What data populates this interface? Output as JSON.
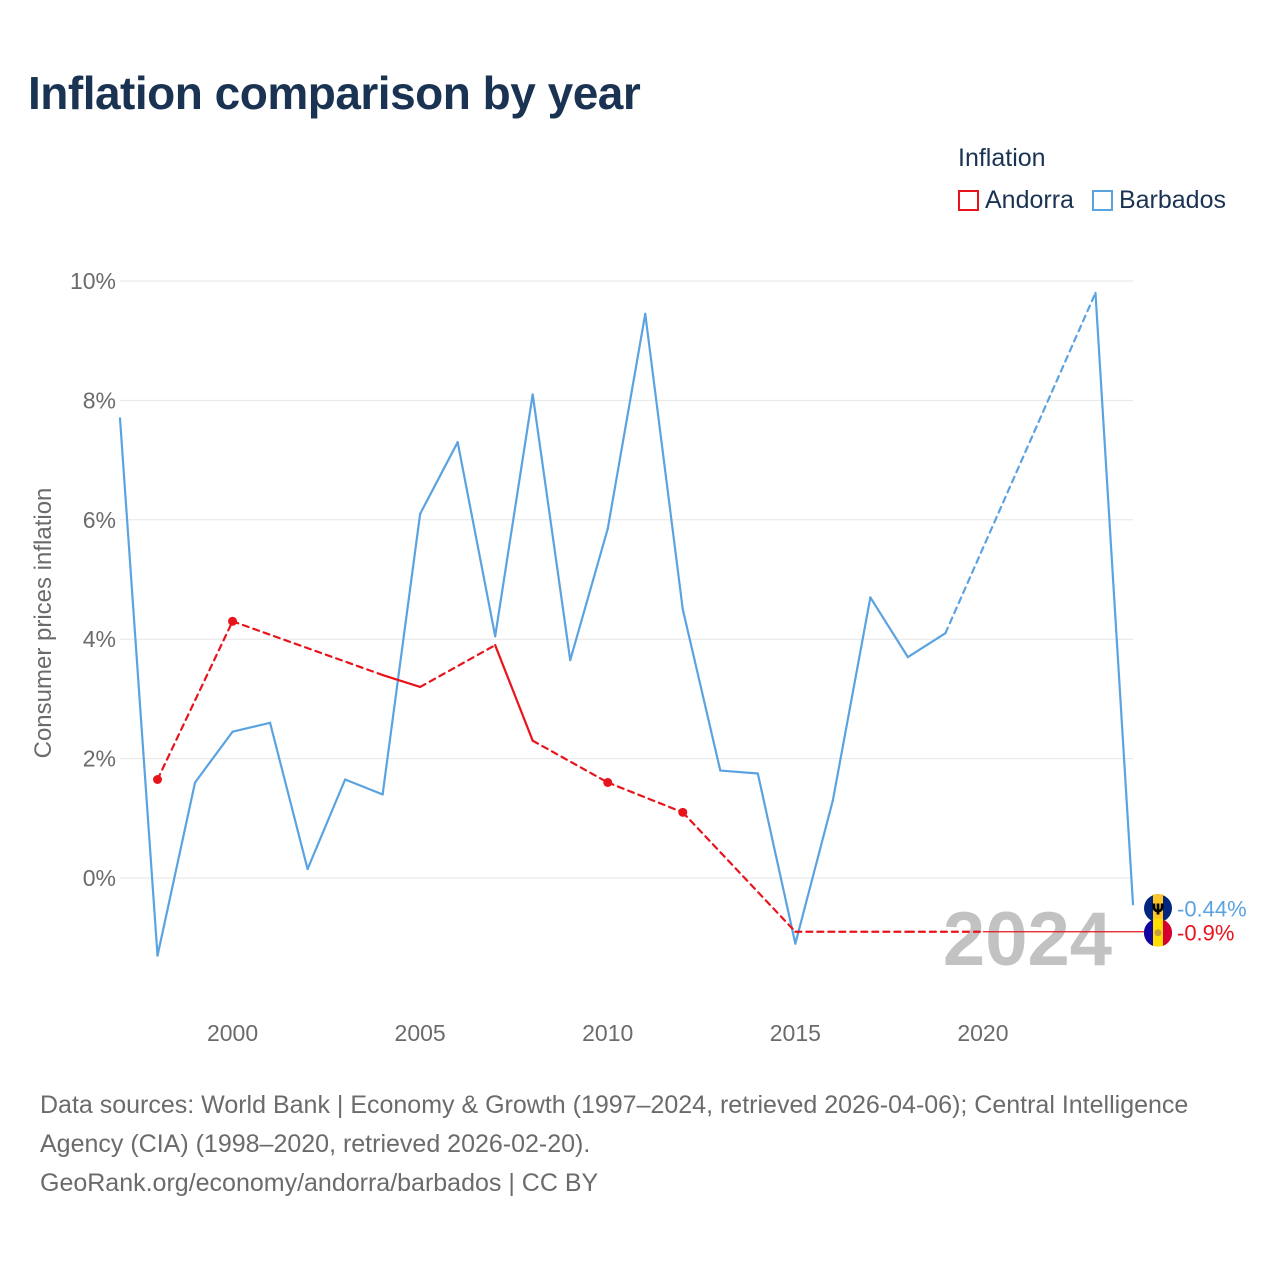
{
  "chart_data": {
    "type": "line",
    "title": "Inflation comparison by year",
    "legend_title": "Inflation",
    "ylabel": "Consumer prices inflation",
    "xlabel": "",
    "xlim": [
      1997,
      2024
    ],
    "ylim": [
      -3.5,
      10.5
    ],
    "x_ticks": [
      2000,
      2005,
      2010,
      2015,
      2020
    ],
    "y_ticks": [
      0,
      2,
      4,
      6,
      8,
      10
    ],
    "y_tick_labels": [
      "0%",
      "2%",
      "4%",
      "6%",
      "8%",
      "10%"
    ],
    "year_watermark": "2024",
    "series": [
      {
        "name": "Barbados",
        "color": "#5ba3e0",
        "points": [
          {
            "x": 1997,
            "y": 7.7
          },
          {
            "x": 1998,
            "y": -1.3
          },
          {
            "x": 1999,
            "y": 1.6
          },
          {
            "x": 2000,
            "y": 2.45
          },
          {
            "x": 2001,
            "y": 2.6
          },
          {
            "x": 2002,
            "y": 0.15
          },
          {
            "x": 2003,
            "y": 1.65
          },
          {
            "x": 2004,
            "y": 1.4
          },
          {
            "x": 2005,
            "y": 6.1
          },
          {
            "x": 2006,
            "y": 7.3
          },
          {
            "x": 2007,
            "y": 4.05
          },
          {
            "x": 2008,
            "y": 8.1
          },
          {
            "x": 2009,
            "y": 3.65
          },
          {
            "x": 2010,
            "y": 5.85
          },
          {
            "x": 2011,
            "y": 9.45
          },
          {
            "x": 2012,
            "y": 4.5
          },
          {
            "x": 2013,
            "y": 1.8
          },
          {
            "x": 2014,
            "y": 1.75
          },
          {
            "x": 2015,
            "y": -1.1
          },
          {
            "x": 2016,
            "y": 1.3
          },
          {
            "x": 2017,
            "y": 4.7
          },
          {
            "x": 2018,
            "y": 3.7
          },
          {
            "x": 2019,
            "y": 4.1
          },
          {
            "x": 2023,
            "y": 9.8
          },
          {
            "x": 2024,
            "y": -0.44
          }
        ],
        "end_label": "-0.44%"
      },
      {
        "name": "Andorra",
        "color": "#e8141c",
        "points": [
          {
            "x": 1998,
            "y": 1.65
          },
          {
            "x": 2000,
            "y": 4.3
          },
          {
            "x": 2004,
            "y": 3.4
          },
          {
            "x": 2005,
            "y": 3.2
          },
          {
            "x": 2007,
            "y": 3.9
          },
          {
            "x": 2008,
            "y": 2.3
          },
          {
            "x": 2010,
            "y": 1.6
          },
          {
            "x": 2012,
            "y": 1.1
          },
          {
            "x": 2015,
            "y": -0.9
          },
          {
            "x": 2018,
            "y": -0.9
          },
          {
            "x": 2020,
            "y": -0.9
          }
        ],
        "isolated_markers": [
          1998,
          2000,
          2010,
          2012
        ],
        "end_value": -0.9,
        "end_label": "-0.9%"
      }
    ]
  },
  "footer": {
    "sources": "Data sources: World Bank | Economy & Growth (1997–2024, retrieved 2026-04-06); Central Intelligence Agency (CIA) (1998–2020, retrieved 2026-02-20).",
    "credit": "GeoRank.org/economy/andorra/barbados | CC BY"
  },
  "icons": {
    "barbados": "barbados-flag-icon",
    "andorra": "andorra-flag-icon"
  },
  "colors": {
    "title": "#1b3352",
    "grid": "#e6e6e6",
    "axis_text": "#6b6b6b",
    "watermark": "#c2c2c2"
  }
}
